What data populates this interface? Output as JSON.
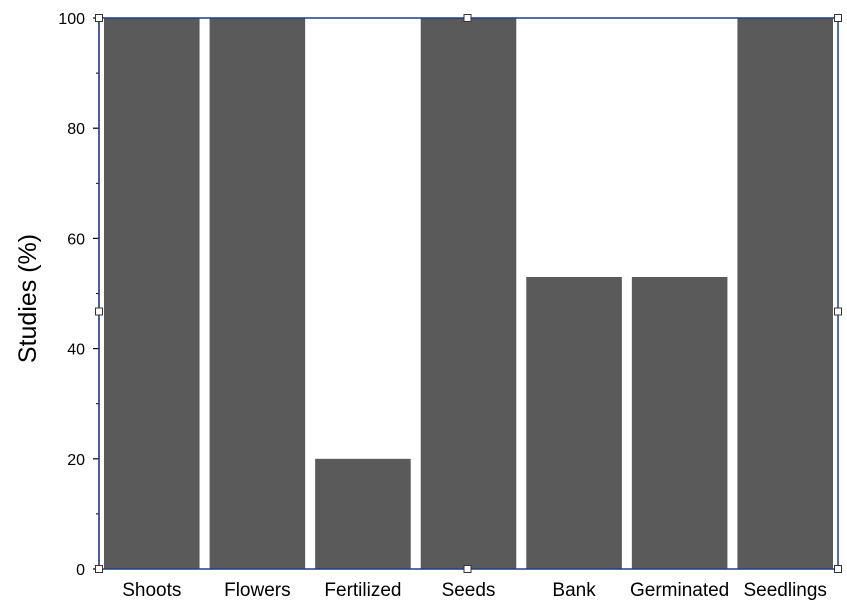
{
  "chart_data": {
    "type": "bar",
    "categories": [
      "Shoots",
      "Flowers",
      "Fertilized",
      "Seeds",
      "Bank",
      "Germinated",
      "Seedlings"
    ],
    "values": [
      100,
      100,
      20,
      100,
      53,
      53,
      100
    ],
    "ylabel": "Studies (%)",
    "xlabel": "",
    "ylim": [
      0,
      100
    ],
    "yticks": [
      "0",
      "20",
      "40",
      "60",
      "80",
      "100"
    ],
    "grid": false,
    "bar_color": "#5a5a5a",
    "frame_color": "#1f3d8a"
  }
}
